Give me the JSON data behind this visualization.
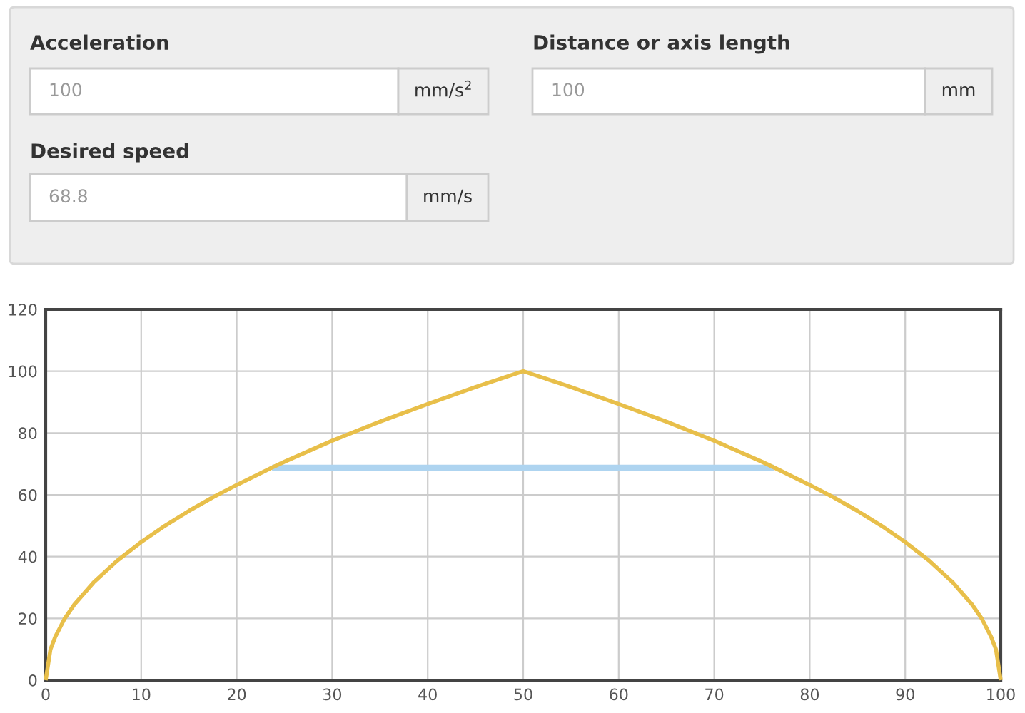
{
  "chart_data": [
    {
      "type": "other",
      "annotations": [
        "Acceleration",
        "100",
        "mm/s$^{2}$",
        "Distance or axis length",
        "100",
        "mm",
        "Desired speed",
        "68.8",
        "mm/s"
      ]
    },
    {
      "type": "line",
      "xlim": [
        0,
        100
      ],
      "ylim": [
        0,
        120
      ],
      "xticks": [
        0,
        10,
        20,
        30,
        40,
        50,
        60,
        70,
        80,
        90,
        100
      ],
      "yticks": [
        0,
        20,
        40,
        60,
        80,
        100,
        120
      ],
      "grid": true,
      "marker": "none",
      "line_style": "solid",
      "series": [
        {
          "color": "#aed4f0",
          "x": [
            23.7,
            76.3
          ],
          "values": [
            68.8,
            68.8
          ]
        },
        {
          "color": "#e8bf4a",
          "x": [
            0,
            0.5,
            1,
            2,
            3,
            5,
            7.5,
            10,
            12.5,
            15,
            17.5,
            20,
            23.7,
            25,
            30,
            35,
            40,
            45,
            50,
            55,
            60,
            65,
            70,
            75,
            76.3,
            80,
            82.5,
            85,
            87.5,
            90,
            92.5,
            95,
            97,
            98,
            99,
            99.5,
            100
          ],
          "values": [
            0,
            10,
            14,
            20,
            24.5,
            31.6,
            38.7,
            44.7,
            50,
            54.8,
            59.2,
            63.2,
            68.8,
            70.7,
            77.5,
            83.7,
            89.4,
            94.9,
            100,
            94.9,
            89.4,
            83.7,
            77.5,
            70.7,
            68.8,
            63.2,
            59.2,
            54.8,
            50,
            44.7,
            38.7,
            31.6,
            24.5,
            20,
            14,
            10,
            0
          ]
        }
      ]
    }
  ]
}
